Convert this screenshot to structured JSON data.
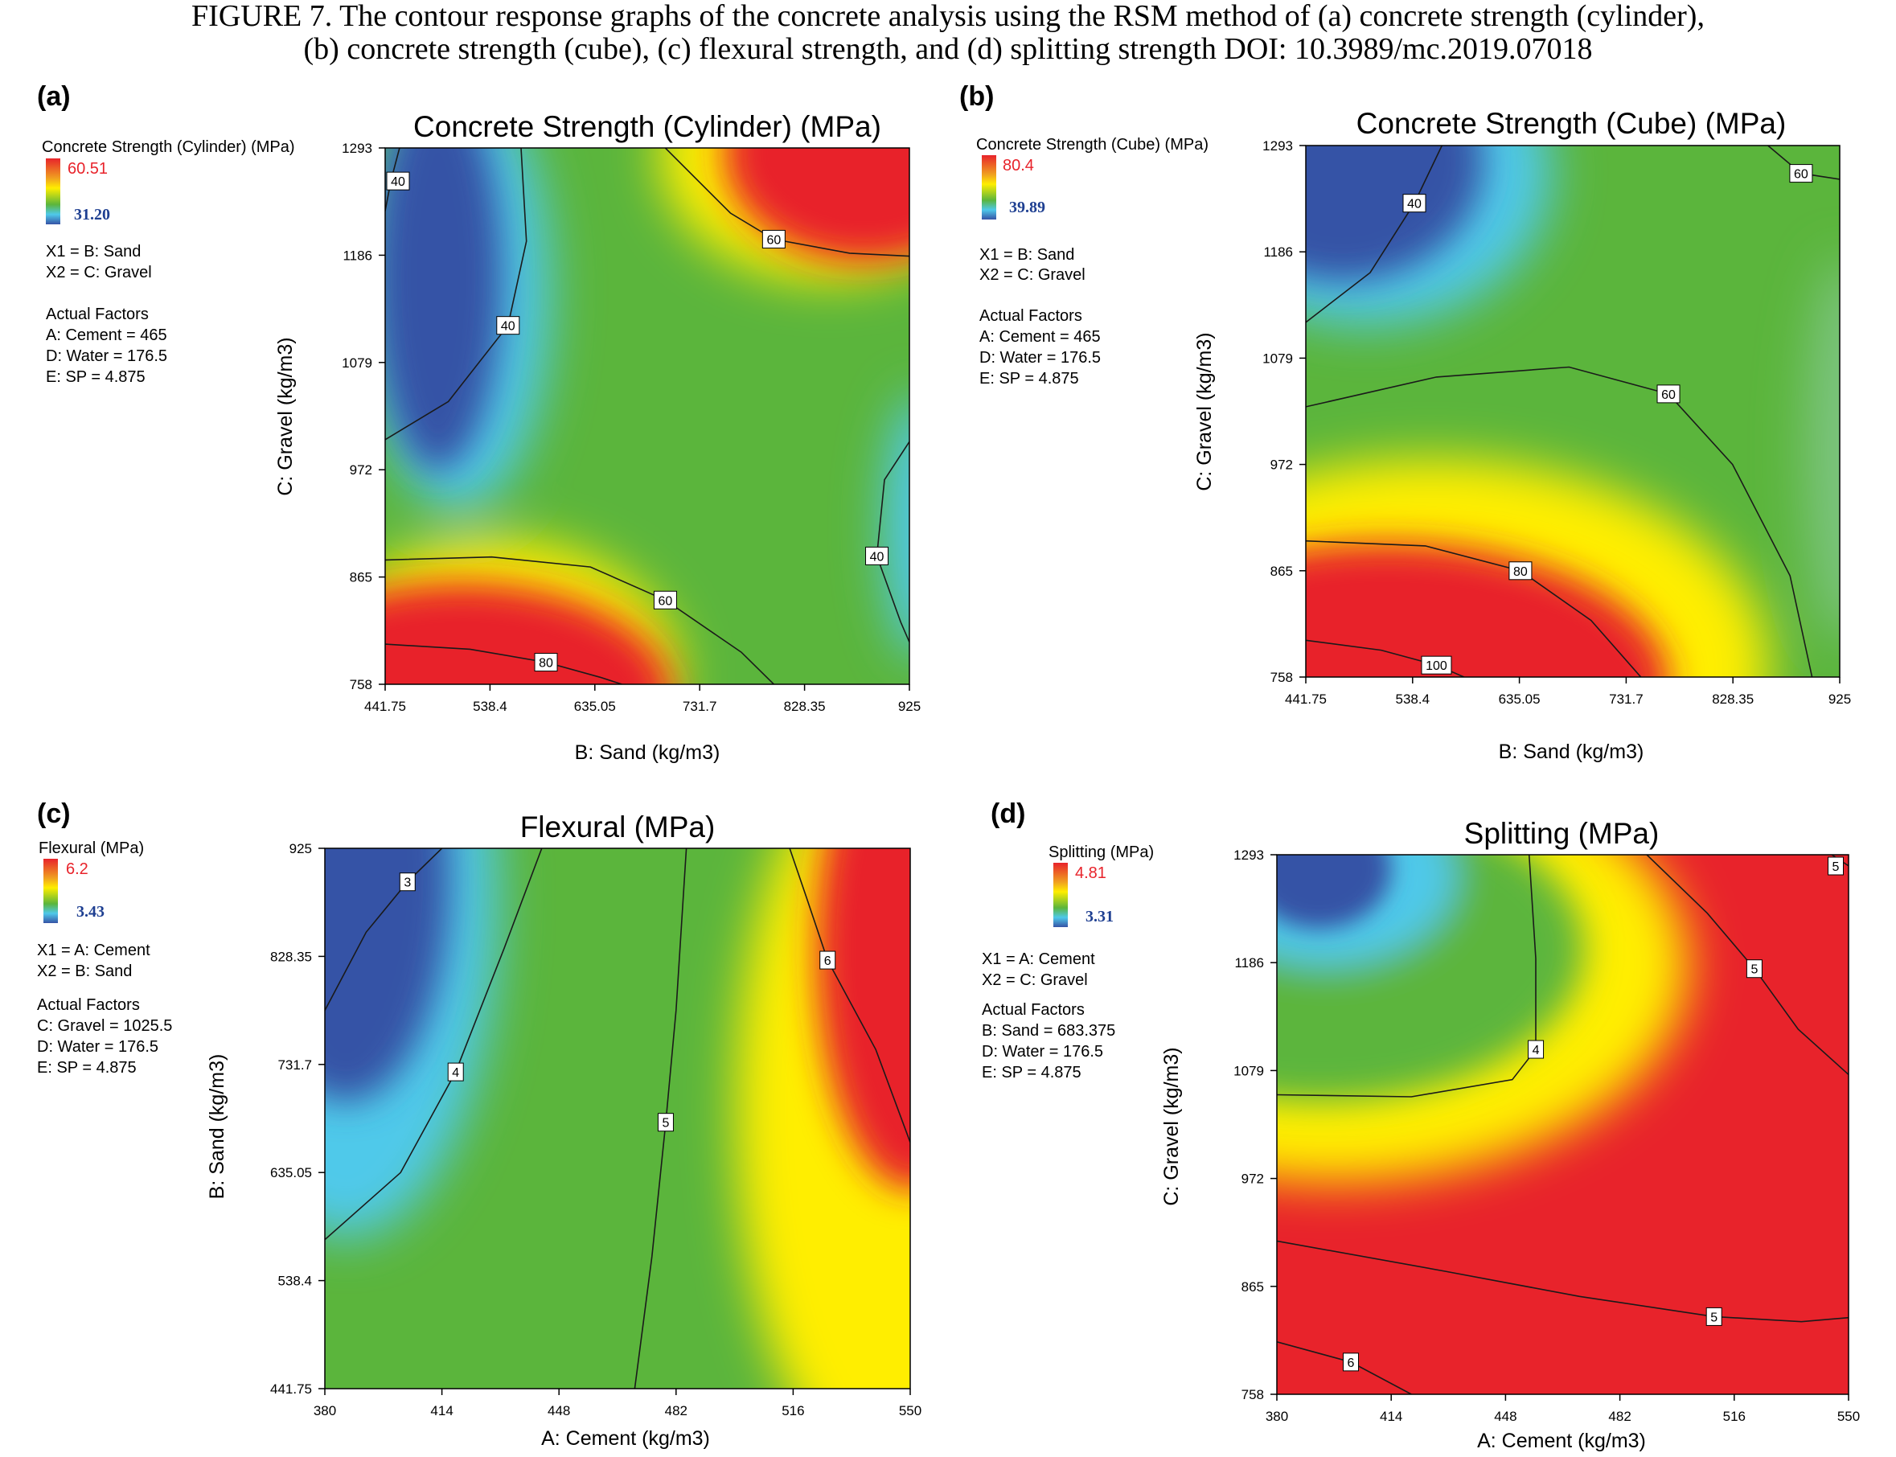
{
  "caption": {
    "line1": "FIGURE 7.   The contour response graphs of the concrete analysis using the RSM method of (a) concrete strength (cylinder),",
    "line2": "(b) concrete strength (cube), (c) flexural strength, and (d) splitting strength DOI: 10.3989/mc.2019.07018"
  },
  "colors": {
    "red": "#e8232b",
    "yellow": "#ffee00",
    "green": "#5bb53c",
    "cyan": "#4fc9ea",
    "blue": "#3653a6",
    "low_value_text": "#1e3f91"
  },
  "panels": [
    {
      "label": "(a)",
      "legend": {
        "title": "Concrete Strength (Cylinder) (MPa)",
        "high": "60.51",
        "low": "31.20"
      },
      "factors": [
        "X1 = B: Sand",
        "X2 = C: Gravel"
      ],
      "actual_title": "Actual Factors",
      "actual": [
        "A: Cement  = 465",
        "D: Water = 176.5",
        "E: SP = 4.875"
      ]
    },
    {
      "label": "(b)",
      "legend": {
        "title": "Concrete Strength (Cube)  (MPa)",
        "high": "80.4",
        "low": "39.89"
      },
      "factors": [
        "X1 = B: Sand",
        "X2 = C: Gravel"
      ],
      "actual_title": "Actual Factors",
      "actual": [
        "A: Cement  = 465",
        "D: Water = 176.5",
        "E: SP = 4.875"
      ]
    },
    {
      "label": "(c)",
      "legend": {
        "title": "Flexural  (MPa)",
        "high": "6.2",
        "low": "3.43"
      },
      "factors": [
        "X1 = A: Cement",
        "X2 = B: Sand"
      ],
      "actual_title": "Actual Factors",
      "actual": [
        "C: Gravel = 1025.5",
        "D: Water = 176.5",
        "E: SP = 4.875"
      ]
    },
    {
      "label": "(d)",
      "legend": {
        "title": "Splitting (MPa)",
        "high": "4.81",
        "low": "3.31"
      },
      "factors": [
        "X1 = A: Cement",
        "X2 = C: Gravel"
      ],
      "actual_title": "Actual Factors",
      "actual": [
        "B: Sand = 683.375",
        "D: Water = 176.5",
        "E: SP = 4.875"
      ]
    }
  ],
  "chart_data": [
    {
      "type": "heatmap",
      "title": "Concrete Strength (Cylinder) (MPa)",
      "xlabel": "B: Sand (kg/m3)",
      "ylabel": "C: Gravel (kg/m3)",
      "xticks": [
        "441.75",
        "538.4",
        "635.05",
        "731.7",
        "828.35",
        "925"
      ],
      "yticks": [
        "758",
        "865",
        "972",
        "1079",
        "1186",
        "1293"
      ],
      "xlim": [
        441.75,
        925
      ],
      "ylim": [
        758,
        1293
      ],
      "zrange": [
        31.2,
        60.51
      ],
      "contours": [
        {
          "label": "80",
          "points": [
            [
              441.75,
              798
            ],
            [
              520,
              793
            ],
            [
              590,
              780
            ],
            [
              640,
              765
            ],
            [
              660,
              758
            ]
          ]
        },
        {
          "label": "60",
          "points": [
            [
              441.75,
              882
            ],
            [
              540,
              885
            ],
            [
              631,
              875
            ],
            [
              700,
              842
            ],
            [
              770,
              790
            ],
            [
              800,
              758
            ]
          ]
        },
        {
          "label": "60",
          "points": [
            [
              700,
              1293
            ],
            [
              760,
              1228
            ],
            [
              800,
              1202
            ],
            [
              870,
              1188
            ],
            [
              925,
              1185
            ]
          ]
        },
        {
          "label": "40",
          "points": [
            [
              441.75,
              1002
            ],
            [
              500,
              1040
            ],
            [
              555,
              1116
            ],
            [
              572,
              1200
            ],
            [
              567,
              1293
            ]
          ]
        },
        {
          "label": "40",
          "points": [
            [
              441.75,
              1230
            ],
            [
              447,
              1260
            ],
            [
              455,
              1293
            ]
          ]
        },
        {
          "label": "40",
          "points": [
            [
              925,
              1000
            ],
            [
              902,
              962
            ],
            [
              895,
              886
            ],
            [
              917,
              820
            ],
            [
              925,
              800
            ]
          ]
        }
      ]
    },
    {
      "type": "heatmap",
      "title": "Concrete Strength (Cube)  (MPa)",
      "xlabel": "B: Sand (kg/m3)",
      "ylabel": "C: Gravel (kg/m3)",
      "xticks": [
        "441.75",
        "538.4",
        "635.05",
        "731.7",
        "828.35",
        "925"
      ],
      "yticks": [
        "758",
        "865",
        "972",
        "1079",
        "1186",
        "1293"
      ],
      "xlim": [
        441.75,
        925
      ],
      "ylim": [
        758,
        1293
      ],
      "zrange": [
        39.89,
        80.4
      ],
      "contours": [
        {
          "label": "100",
          "points": [
            [
              441.75,
              795
            ],
            [
              510,
              785
            ],
            [
              560,
              770
            ],
            [
              585,
              758
            ]
          ]
        },
        {
          "label": "80",
          "points": [
            [
              441.75,
              895
            ],
            [
              550,
              890
            ],
            [
              636,
              865
            ],
            [
              700,
              815
            ],
            [
              745,
              758
            ]
          ]
        },
        {
          "label": "60",
          "points": [
            [
              441.75,
              1030
            ],
            [
              560,
              1060
            ],
            [
              680,
              1070
            ],
            [
              770,
              1043
            ],
            [
              828,
              972
            ],
            [
              880,
              860
            ],
            [
              900,
              758
            ]
          ]
        },
        {
          "label": "40",
          "points": [
            [
              441.75,
              1115
            ],
            [
              500,
              1165
            ],
            [
              540,
              1235
            ],
            [
              565,
              1293
            ]
          ]
        },
        {
          "label": "60",
          "points": [
            [
              860,
              1293
            ],
            [
              890,
              1265
            ],
            [
              925,
              1259
            ]
          ]
        }
      ]
    },
    {
      "type": "heatmap",
      "title": "Flexural  (MPa)",
      "xlabel": "A: Cement  (kg/m3)",
      "ylabel": "B: Sand (kg/m3)",
      "xticks": [
        "380",
        "414",
        "448",
        "482",
        "516",
        "550"
      ],
      "yticks": [
        "441.75",
        "538.4",
        "635.05",
        "731.7",
        "828.35",
        "925"
      ],
      "xlim": [
        380,
        550
      ],
      "ylim": [
        441.75,
        925
      ],
      "zrange": [
        3.43,
        6.2
      ],
      "contours": [
        {
          "label": "3",
          "points": [
            [
              380,
              780
            ],
            [
              392,
              850
            ],
            [
              404,
              895
            ],
            [
              414,
              925
            ]
          ]
        },
        {
          "label": "4",
          "points": [
            [
              380,
              575
            ],
            [
              402,
              635
            ],
            [
              418,
              725
            ],
            [
              432,
              835
            ],
            [
              443,
              925
            ]
          ]
        },
        {
          "label": "5",
          "points": [
            [
              470,
              441.75
            ],
            [
              475,
              560
            ],
            [
              479,
              680
            ],
            [
              482,
              780
            ],
            [
              485,
              925
            ]
          ]
        },
        {
          "label": "6",
          "points": [
            [
              550,
              662
            ],
            [
              540,
              745
            ],
            [
              526,
              825
            ],
            [
              520,
              880
            ],
            [
              515,
              925
            ]
          ]
        }
      ]
    },
    {
      "type": "heatmap",
      "title": "Splitting (MPa)",
      "xlabel": "A: Cement  (kg/m3)",
      "ylabel": "C: Gravel (kg/m3)",
      "xticks": [
        "380",
        "414",
        "448",
        "482",
        "516",
        "550"
      ],
      "yticks": [
        "758",
        "865",
        "972",
        "1079",
        "1186",
        "1293"
      ],
      "xlim": [
        380,
        550
      ],
      "ylim": [
        758,
        1293
      ],
      "zrange": [
        3.31,
        4.81
      ],
      "contours": [
        {
          "label": "6",
          "points": [
            [
              380,
              810
            ],
            [
              402,
              790
            ],
            [
              420,
              758
            ]
          ]
        },
        {
          "label": "5",
          "points": [
            [
              380,
              910
            ],
            [
              430,
              880
            ],
            [
              470,
              855
            ],
            [
              510,
              835
            ],
            [
              536,
              830
            ],
            [
              550,
              834
            ]
          ]
        },
        {
          "label": "4",
          "points": [
            [
              380,
              1055
            ],
            [
              420,
              1053
            ],
            [
              450,
              1070
            ],
            [
              457,
              1100
            ],
            [
              457,
              1190
            ],
            [
              455,
              1293
            ]
          ]
        },
        {
          "label": "5",
          "points": [
            [
              490,
              1293
            ],
            [
              508,
              1235
            ],
            [
              522,
              1180
            ],
            [
              535,
              1120
            ],
            [
              550,
              1075
            ]
          ]
        },
        {
          "label": "5",
          "points": [
            [
              545,
              1293
            ],
            [
              550,
              1282
            ]
          ]
        }
      ]
    }
  ]
}
